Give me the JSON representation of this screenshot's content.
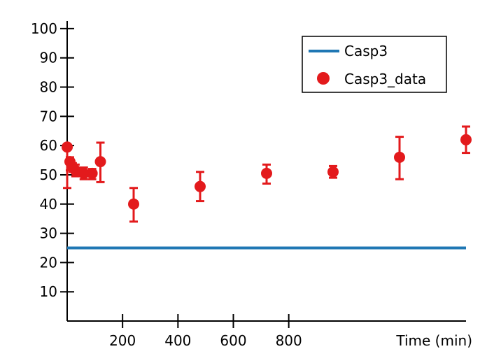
{
  "chart_data": {
    "type": "scatter",
    "xlabel": "Time (min)",
    "ylabel": "",
    "xlim": [
      0,
      1440
    ],
    "ylim": [
      0,
      105
    ],
    "x_ticks": [
      200,
      400,
      600,
      800
    ],
    "y_ticks": [
      10,
      20,
      30,
      40,
      50,
      60,
      70,
      80,
      90,
      100
    ],
    "grid": false,
    "legend_position": "top-right",
    "series": [
      {
        "name": "Casp3",
        "kind": "line",
        "color": "#1f77b4",
        "x": [
          0,
          1440
        ],
        "y": [
          25,
          25
        ]
      },
      {
        "name": "Casp3_data",
        "kind": "points_with_error",
        "color": "#e31a1c",
        "points": [
          {
            "x": 0,
            "y": 59.5,
            "err_low": 45.5,
            "err_high": 59.5
          },
          {
            "x": 10,
            "y": 54.5,
            "err_low": 51.5,
            "err_high": 56
          },
          {
            "x": 20,
            "y": 52.5,
            "err_low": 51,
            "err_high": 54
          },
          {
            "x": 30,
            "y": 51.5,
            "err_low": 49.5,
            "err_high": 53.5
          },
          {
            "x": 60,
            "y": 50.5,
            "err_low": 48.5,
            "err_high": 52.5
          },
          {
            "x": 90,
            "y": 50.5,
            "err_low": 48.5,
            "err_high": 52
          },
          {
            "x": 120,
            "y": 54.5,
            "err_low": 47.5,
            "err_high": 61
          },
          {
            "x": 240,
            "y": 40,
            "err_low": 34,
            "err_high": 45.5
          },
          {
            "x": 480,
            "y": 46,
            "err_low": 41,
            "err_high": 51
          },
          {
            "x": 720,
            "y": 50.5,
            "err_low": 47,
            "err_high": 53.5
          },
          {
            "x": 960,
            "y": 51,
            "err_low": 49,
            "err_high": 53
          },
          {
            "x": 1200,
            "y": 56,
            "err_low": 48.5,
            "err_high": 63
          },
          {
            "x": 1440,
            "y": 62,
            "err_low": 57.5,
            "err_high": 66.5
          }
        ]
      }
    ]
  }
}
